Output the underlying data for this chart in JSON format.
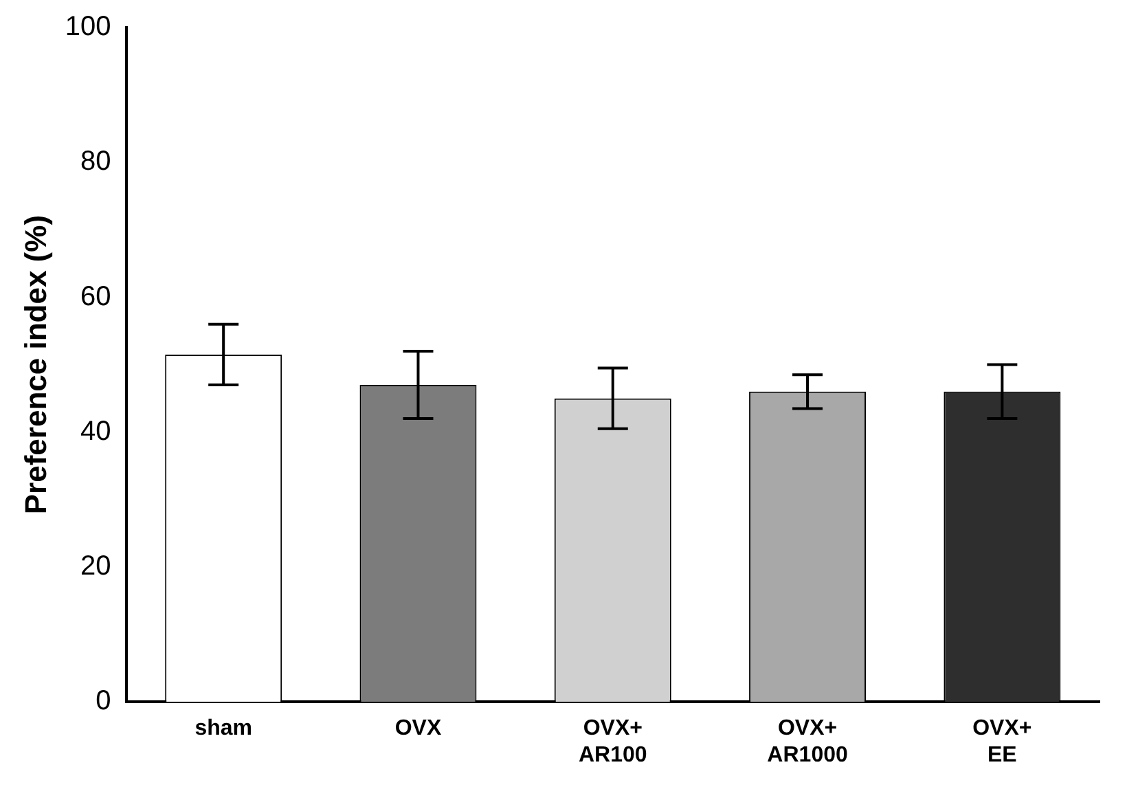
{
  "chart_data": {
    "type": "bar",
    "ylabel": "Preference index (%)",
    "categories": [
      "sham",
      "OVX",
      "OVX+\nAR100",
      "OVX+\nAR1000",
      "OVX+\nEE"
    ],
    "values": [
      51.5,
      47,
      45,
      46,
      46
    ],
    "errors": [
      4.5,
      5,
      4.5,
      2.5,
      4
    ],
    "colors": [
      "#ffffff",
      "#7c7c7c",
      "#d0d0d0",
      "#a8a8a8",
      "#2e2e2e"
    ],
    "ylim": [
      0,
      100
    ],
    "yticks": [
      0,
      20,
      40,
      60,
      80,
      100
    ],
    "grid": false,
    "legend": false
  }
}
